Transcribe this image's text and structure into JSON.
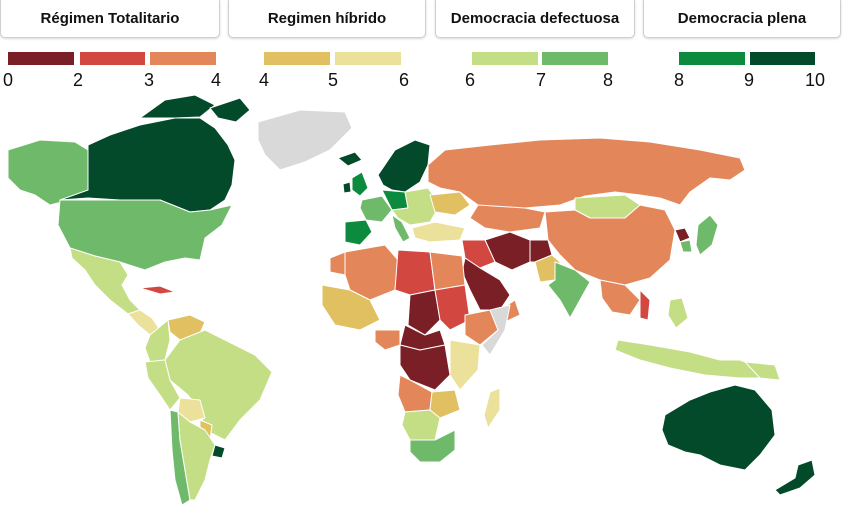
{
  "categories": [
    {
      "label": "Régimen Totalitario"
    },
    {
      "label": "Regimen híbrido"
    },
    {
      "label": "Democracia defectuosa"
    },
    {
      "label": "Democracia plena"
    }
  ],
  "legend": {
    "bins": [
      {
        "from": 0,
        "to": 2,
        "color": "#7a1f26"
      },
      {
        "from": 2,
        "to": 3,
        "color": "#d2473f"
      },
      {
        "from": 3,
        "to": 4,
        "color": "#e3875a"
      },
      {
        "from": 4,
        "to": 5,
        "color": "#e0c060"
      },
      {
        "from": 5,
        "to": 6,
        "color": "#ece19a"
      },
      {
        "from": 6,
        "to": 7,
        "color": "#c3de85"
      },
      {
        "from": 7,
        "to": 8,
        "color": "#6fba6a"
      },
      {
        "from": 8,
        "to": 9,
        "color": "#0c8a3e"
      },
      {
        "from": 9,
        "to": 10,
        "color": "#024a2a"
      }
    ],
    "ticks": [
      "0",
      "2",
      "3",
      "4",
      "4",
      "5",
      "6",
      "6",
      "7",
      "8",
      "8",
      "9",
      "10"
    ]
  },
  "colors": {
    "no_data": "#d9d9d9",
    "ocean": "#ffffff",
    "border": "#ffffff"
  }
}
